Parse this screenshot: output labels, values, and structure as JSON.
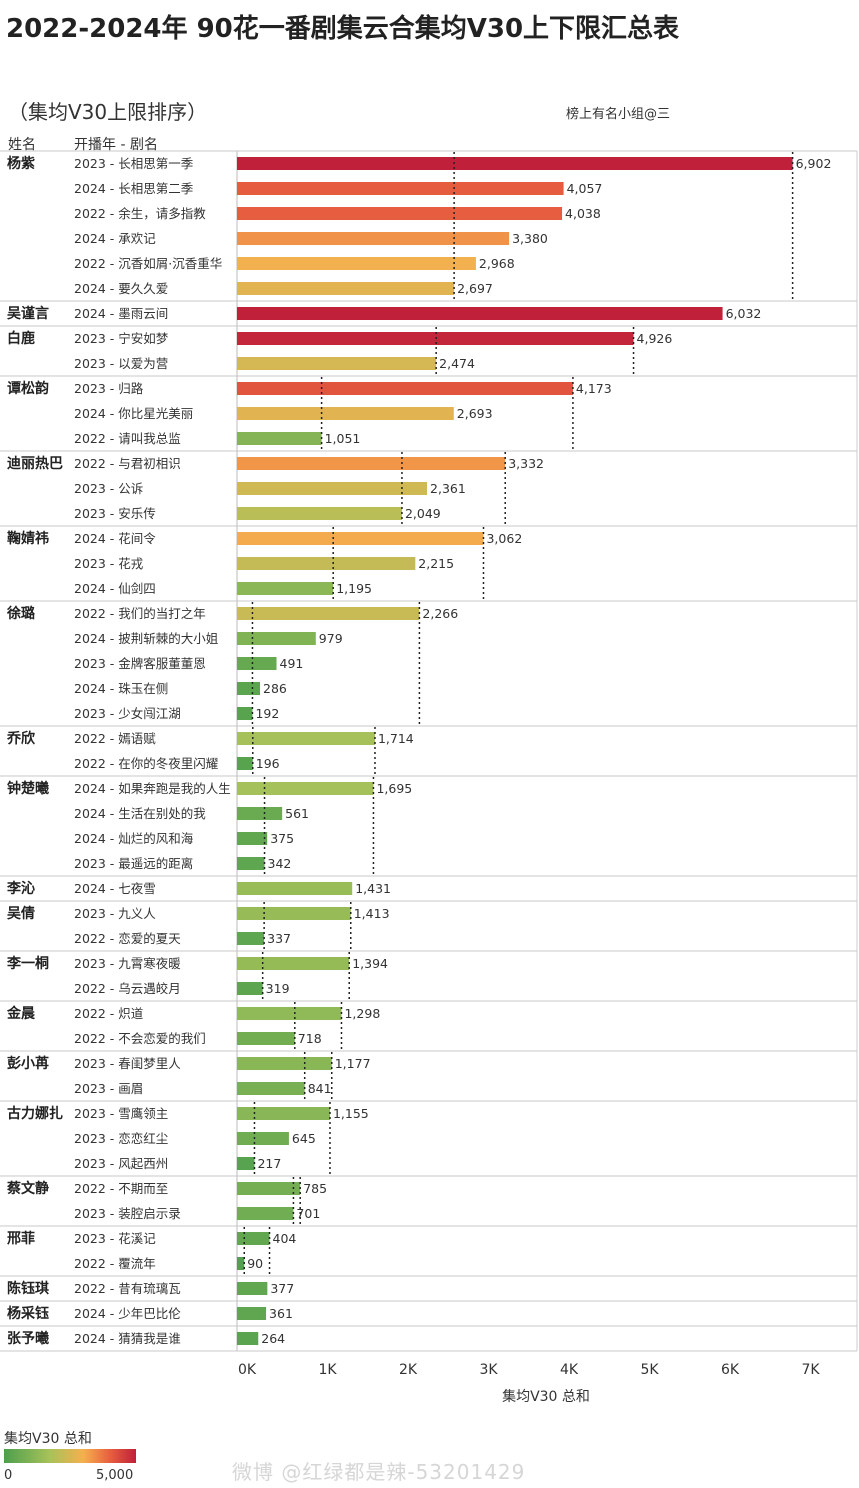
{
  "title": "2022-2024年 90花一番剧集云合集均V30上下限汇总表",
  "subtitle": "（集均V30上限排序）",
  "credit": "榜上有名小组@三",
  "header_name": "姓名",
  "header_show": "开播年 - 剧名",
  "legend": {
    "title": "集均V30 总和",
    "min_label": "0",
    "max_label": "5,000",
    "min_value": 0,
    "max_value": 5000
  },
  "watermark": "微博 @红绿都是辣-53201429",
  "colors": {
    "low": "#4d9f4d",
    "midlow": "#a8c25a",
    "mid": "#f5b04e",
    "midhigh": "#e8603f",
    "high": "#c0203a",
    "divider": "#c8c8c8"
  },
  "chart_data": {
    "type": "bar",
    "orientation": "horizontal",
    "xlabel": "集均V30 总和",
    "xlim": [
      0,
      7500
    ],
    "xticks": [
      0,
      1000,
      2000,
      3000,
      4000,
      5000,
      6000,
      7000
    ],
    "xtick_labels": [
      "0K",
      "1K",
      "2K",
      "3K",
      "4K",
      "5K",
      "6K",
      "7K"
    ],
    "groups": [
      {
        "name": "杨紫",
        "rows": [
          {
            "show": "2023 - 长相思第一季",
            "value": 6902,
            "label": "6,902"
          },
          {
            "show": "2024 - 长相思第二季",
            "value": 4057,
            "label": "4,057"
          },
          {
            "show": "2022 - 余生，请多指教",
            "value": 4038,
            "label": "4,038"
          },
          {
            "show": "2024 - 承欢记",
            "value": 3380,
            "label": "3,380"
          },
          {
            "show": "2022 - 沉香如屑·沉香重华",
            "value": 2968,
            "label": "2,968"
          },
          {
            "show": "2024 - 要久久爱",
            "value": 2697,
            "label": "2,697"
          }
        ]
      },
      {
        "name": "吴谨言",
        "rows": [
          {
            "show": "2024 - 墨雨云间",
            "value": 6032,
            "label": "6,032"
          }
        ]
      },
      {
        "name": "白鹿",
        "rows": [
          {
            "show": "2023 - 宁安如梦",
            "value": 4926,
            "label": "4,926"
          },
          {
            "show": "2023 - 以爱为营",
            "value": 2474,
            "label": "2,474"
          }
        ]
      },
      {
        "name": "谭松韵",
        "rows": [
          {
            "show": "2023 - 归路",
            "value": 4173,
            "label": "4,173"
          },
          {
            "show": "2024 - 你比星光美丽",
            "value": 2693,
            "label": "2,693"
          },
          {
            "show": "2022 - 请叫我总监",
            "value": 1051,
            "label": "1,051"
          }
        ]
      },
      {
        "name": "迪丽热巴",
        "rows": [
          {
            "show": "2022 - 与君初相识",
            "value": 3332,
            "label": "3,332"
          },
          {
            "show": "2023 - 公诉",
            "value": 2361,
            "label": "2,361"
          },
          {
            "show": "2023 - 安乐传",
            "value": 2049,
            "label": "2,049"
          }
        ]
      },
      {
        "name": "鞠婧祎",
        "rows": [
          {
            "show": "2024 - 花间令",
            "value": 3062,
            "label": "3,062"
          },
          {
            "show": "2023 - 花戎",
            "value": 2215,
            "label": "2,215"
          },
          {
            "show": "2024 - 仙剑四",
            "value": 1195,
            "label": "1,195"
          }
        ]
      },
      {
        "name": "徐璐",
        "rows": [
          {
            "show": "2022 - 我们的当打之年",
            "value": 2266,
            "label": "2,266"
          },
          {
            "show": "2024 - 披荆斩棘的大小姐",
            "value": 979,
            "label": "979"
          },
          {
            "show": "2023 - 金牌客服董董恩",
            "value": 491,
            "label": "491"
          },
          {
            "show": "2024 - 珠玉在侧",
            "value": 286,
            "label": "286"
          },
          {
            "show": "2023 - 少女闯江湖",
            "value": 192,
            "label": "192"
          }
        ]
      },
      {
        "name": "乔欣",
        "rows": [
          {
            "show": "2022 - 嫣语赋",
            "value": 1714,
            "label": "1,714"
          },
          {
            "show": "2022 - 在你的冬夜里闪耀",
            "value": 196,
            "label": "196"
          }
        ]
      },
      {
        "name": "钟楚曦",
        "rows": [
          {
            "show": "2024 - 如果奔跑是我的人生",
            "value": 1695,
            "label": "1,695"
          },
          {
            "show": "2024 - 生活在别处的我",
            "value": 561,
            "label": "561"
          },
          {
            "show": "2024 - 灿烂的风和海",
            "value": 375,
            "label": "375"
          },
          {
            "show": "2023 - 最遥远的距离",
            "value": 342,
            "label": "342"
          }
        ]
      },
      {
        "name": "李沁",
        "rows": [
          {
            "show": "2024 - 七夜雪",
            "value": 1431,
            "label": "1,431"
          }
        ]
      },
      {
        "name": "吴倩",
        "rows": [
          {
            "show": "2023 - 九义人",
            "value": 1413,
            "label": "1,413"
          },
          {
            "show": "2022 - 恋爱的夏天",
            "value": 337,
            "label": "337"
          }
        ]
      },
      {
        "name": "李一桐",
        "rows": [
          {
            "show": "2023 - 九霄寒夜暖",
            "value": 1394,
            "label": "1,394"
          },
          {
            "show": "2022 - 乌云遇皎月",
            "value": 319,
            "label": "319"
          }
        ]
      },
      {
        "name": "金晨",
        "rows": [
          {
            "show": "2022 - 炽道",
            "value": 1298,
            "label": "1,298"
          },
          {
            "show": "2022 - 不会恋爱的我们",
            "value": 718,
            "label": "718"
          }
        ]
      },
      {
        "name": "彭小苒",
        "rows": [
          {
            "show": "2023 - 春闺梦里人",
            "value": 1177,
            "label": "1,177"
          },
          {
            "show": "2023 - 画眉",
            "value": 841,
            "label": "841"
          }
        ]
      },
      {
        "name": "古力娜扎",
        "rows": [
          {
            "show": "2023 - 雪鹰领主",
            "value": 1155,
            "label": "1,155"
          },
          {
            "show": "2023 - 恋恋红尘",
            "value": 645,
            "label": "645"
          },
          {
            "show": "2023 - 风起西州",
            "value": 217,
            "label": "217"
          }
        ]
      },
      {
        "name": "蔡文静",
        "rows": [
          {
            "show": "2022 - 不期而至",
            "value": 785,
            "label": "785"
          },
          {
            "show": "2023 - 装腔启示录",
            "value": 701,
            "label": "701"
          }
        ]
      },
      {
        "name": "邢菲",
        "rows": [
          {
            "show": "2023 - 花溪记",
            "value": 404,
            "label": "404"
          },
          {
            "show": "2022 - 覆流年",
            "value": 90,
            "label": "90"
          }
        ]
      },
      {
        "name": "陈钰琪",
        "rows": [
          {
            "show": "2022 - 昔有琉璃瓦",
            "value": 377,
            "label": "377"
          }
        ]
      },
      {
        "name": "杨采钰",
        "rows": [
          {
            "show": "2024 - 少年巴比伦",
            "value": 361,
            "label": "361"
          }
        ]
      },
      {
        "name": "张予曦",
        "rows": [
          {
            "show": "2024 - 猜猜我是谁",
            "value": 264,
            "label": "264"
          }
        ]
      }
    ]
  }
}
